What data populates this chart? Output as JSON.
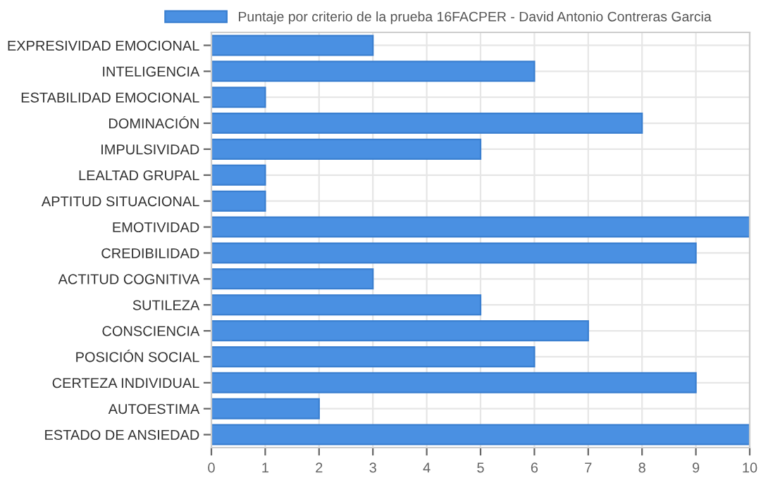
{
  "chart_data": {
    "type": "bar",
    "orientation": "horizontal",
    "categories": [
      "EXPRESIVIDAD EMOCIONAL",
      "INTELIGENCIA",
      "ESTABILIDAD EMOCIONAL",
      "DOMINACIÓN",
      "IMPULSIVIDAD",
      "LEALTAD GRUPAL",
      "APTITUD SITUACIONAL",
      "EMOTIVIDAD",
      "CREDIBILIDAD",
      "ACTITUD COGNITIVA",
      "SUTILEZA",
      "CONSCIENCIA",
      "POSICIÓN SOCIAL",
      "CERTEZA INDIVIDUAL",
      "AUTOESTIMA",
      "ESTADO DE ANSIEDAD"
    ],
    "series": [
      {
        "name": "Puntaje por criterio de la prueba 16FACPER - David Antonio Contreras Garcia",
        "color": "#4a90e2",
        "values": [
          3,
          6,
          1,
          8,
          5,
          1,
          1,
          10,
          9,
          3,
          5,
          7,
          6,
          9,
          2,
          10
        ]
      }
    ],
    "xlim": [
      0,
      10
    ],
    "xticks": [
      0,
      1,
      2,
      3,
      4,
      5,
      6,
      7,
      8,
      9,
      10
    ],
    "grid": true,
    "legend": "top"
  }
}
